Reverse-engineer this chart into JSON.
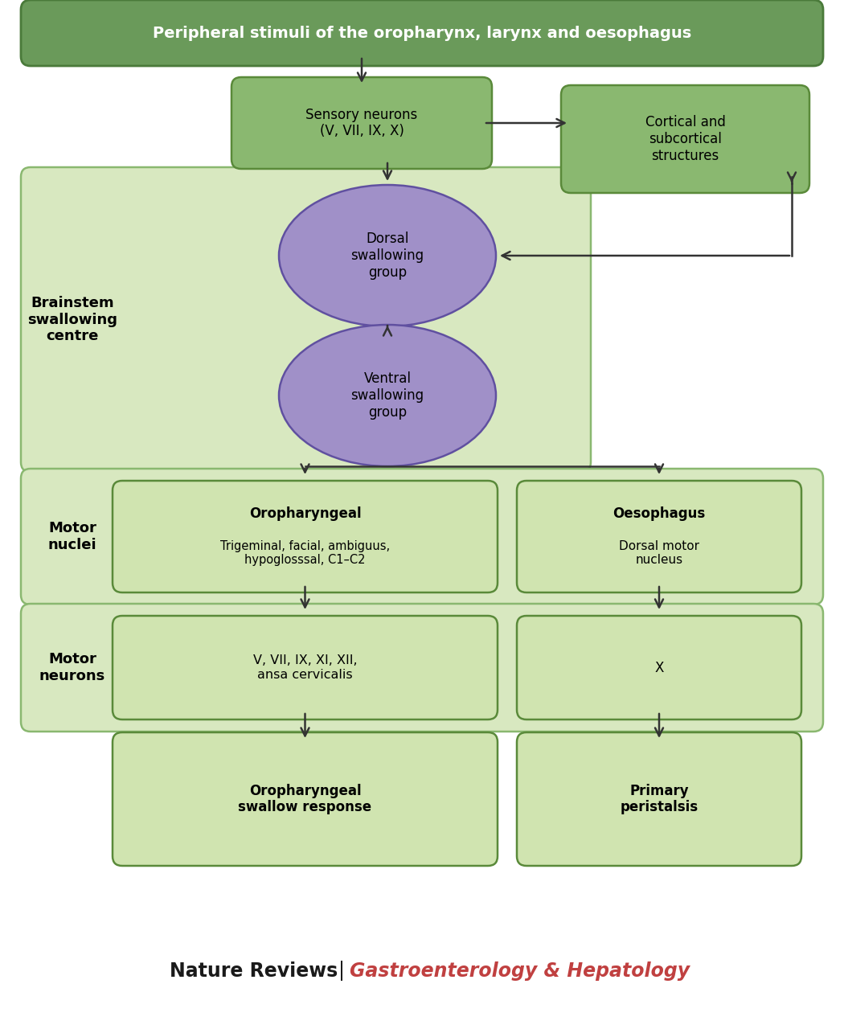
{
  "title_top": "Peripheral stimuli of the oropharynx, larynx and oesophagus",
  "title_top_bg": "#6a9a5a",
  "title_top_border": "#4a7a3a",
  "box_green_bg": "#8ab870",
  "box_green_border": "#5a8a3a",
  "box_green_grad_top": "#a0cc80",
  "box_green_grad_bot": "#6a9a50",
  "ellipse_bg_top": "#b0a0d0",
  "ellipse_bg_bot": "#7060a0",
  "ellipse_border": "#5545889",
  "brainstem_bg": "#d8e8c0",
  "brainstem_border": "#8ab870",
  "inner_box_bg": "#9aba70",
  "inner_box_border": "#5a8a3a",
  "footer_black": "#1a1a1a",
  "footer_red": "#c04040",
  "sensory_text": "Sensory neurons\n(V, VII, IX, X)",
  "cortical_text": "Cortical and\nsubcortical\nstructures",
  "dorsal_text": "Dorsal\nswallowing\ngroup",
  "ventral_text": "Ventral\nswallowing\ngroup",
  "brainstem_label": "Brainstem\nswallowing\ncentre",
  "motor_nuclei_label": "Motor\nnuclei",
  "motor_neurons_label": "Motor\nneurons",
  "oropharyngeal_title": "Oropharyngeal",
  "oropharyngeal_body": "Trigeminal, facial, ambiguus,\nhypoglosssal, C1–C2",
  "oesophagus_title": "Oesophagus",
  "oesophagus_body": "Dorsal motor\nnucleus",
  "motor_n_left": "V, VII, IX, XI, XII,\nansa cervicalis",
  "motor_n_right": "X",
  "response_left": "Oropharyngeal\nswallow response",
  "response_right": "Primary\nperistalsis",
  "footer_text1": "Nature Reviews",
  "footer_sep": "  |  ",
  "footer_text2": "Gastroenterology & Hepatology"
}
